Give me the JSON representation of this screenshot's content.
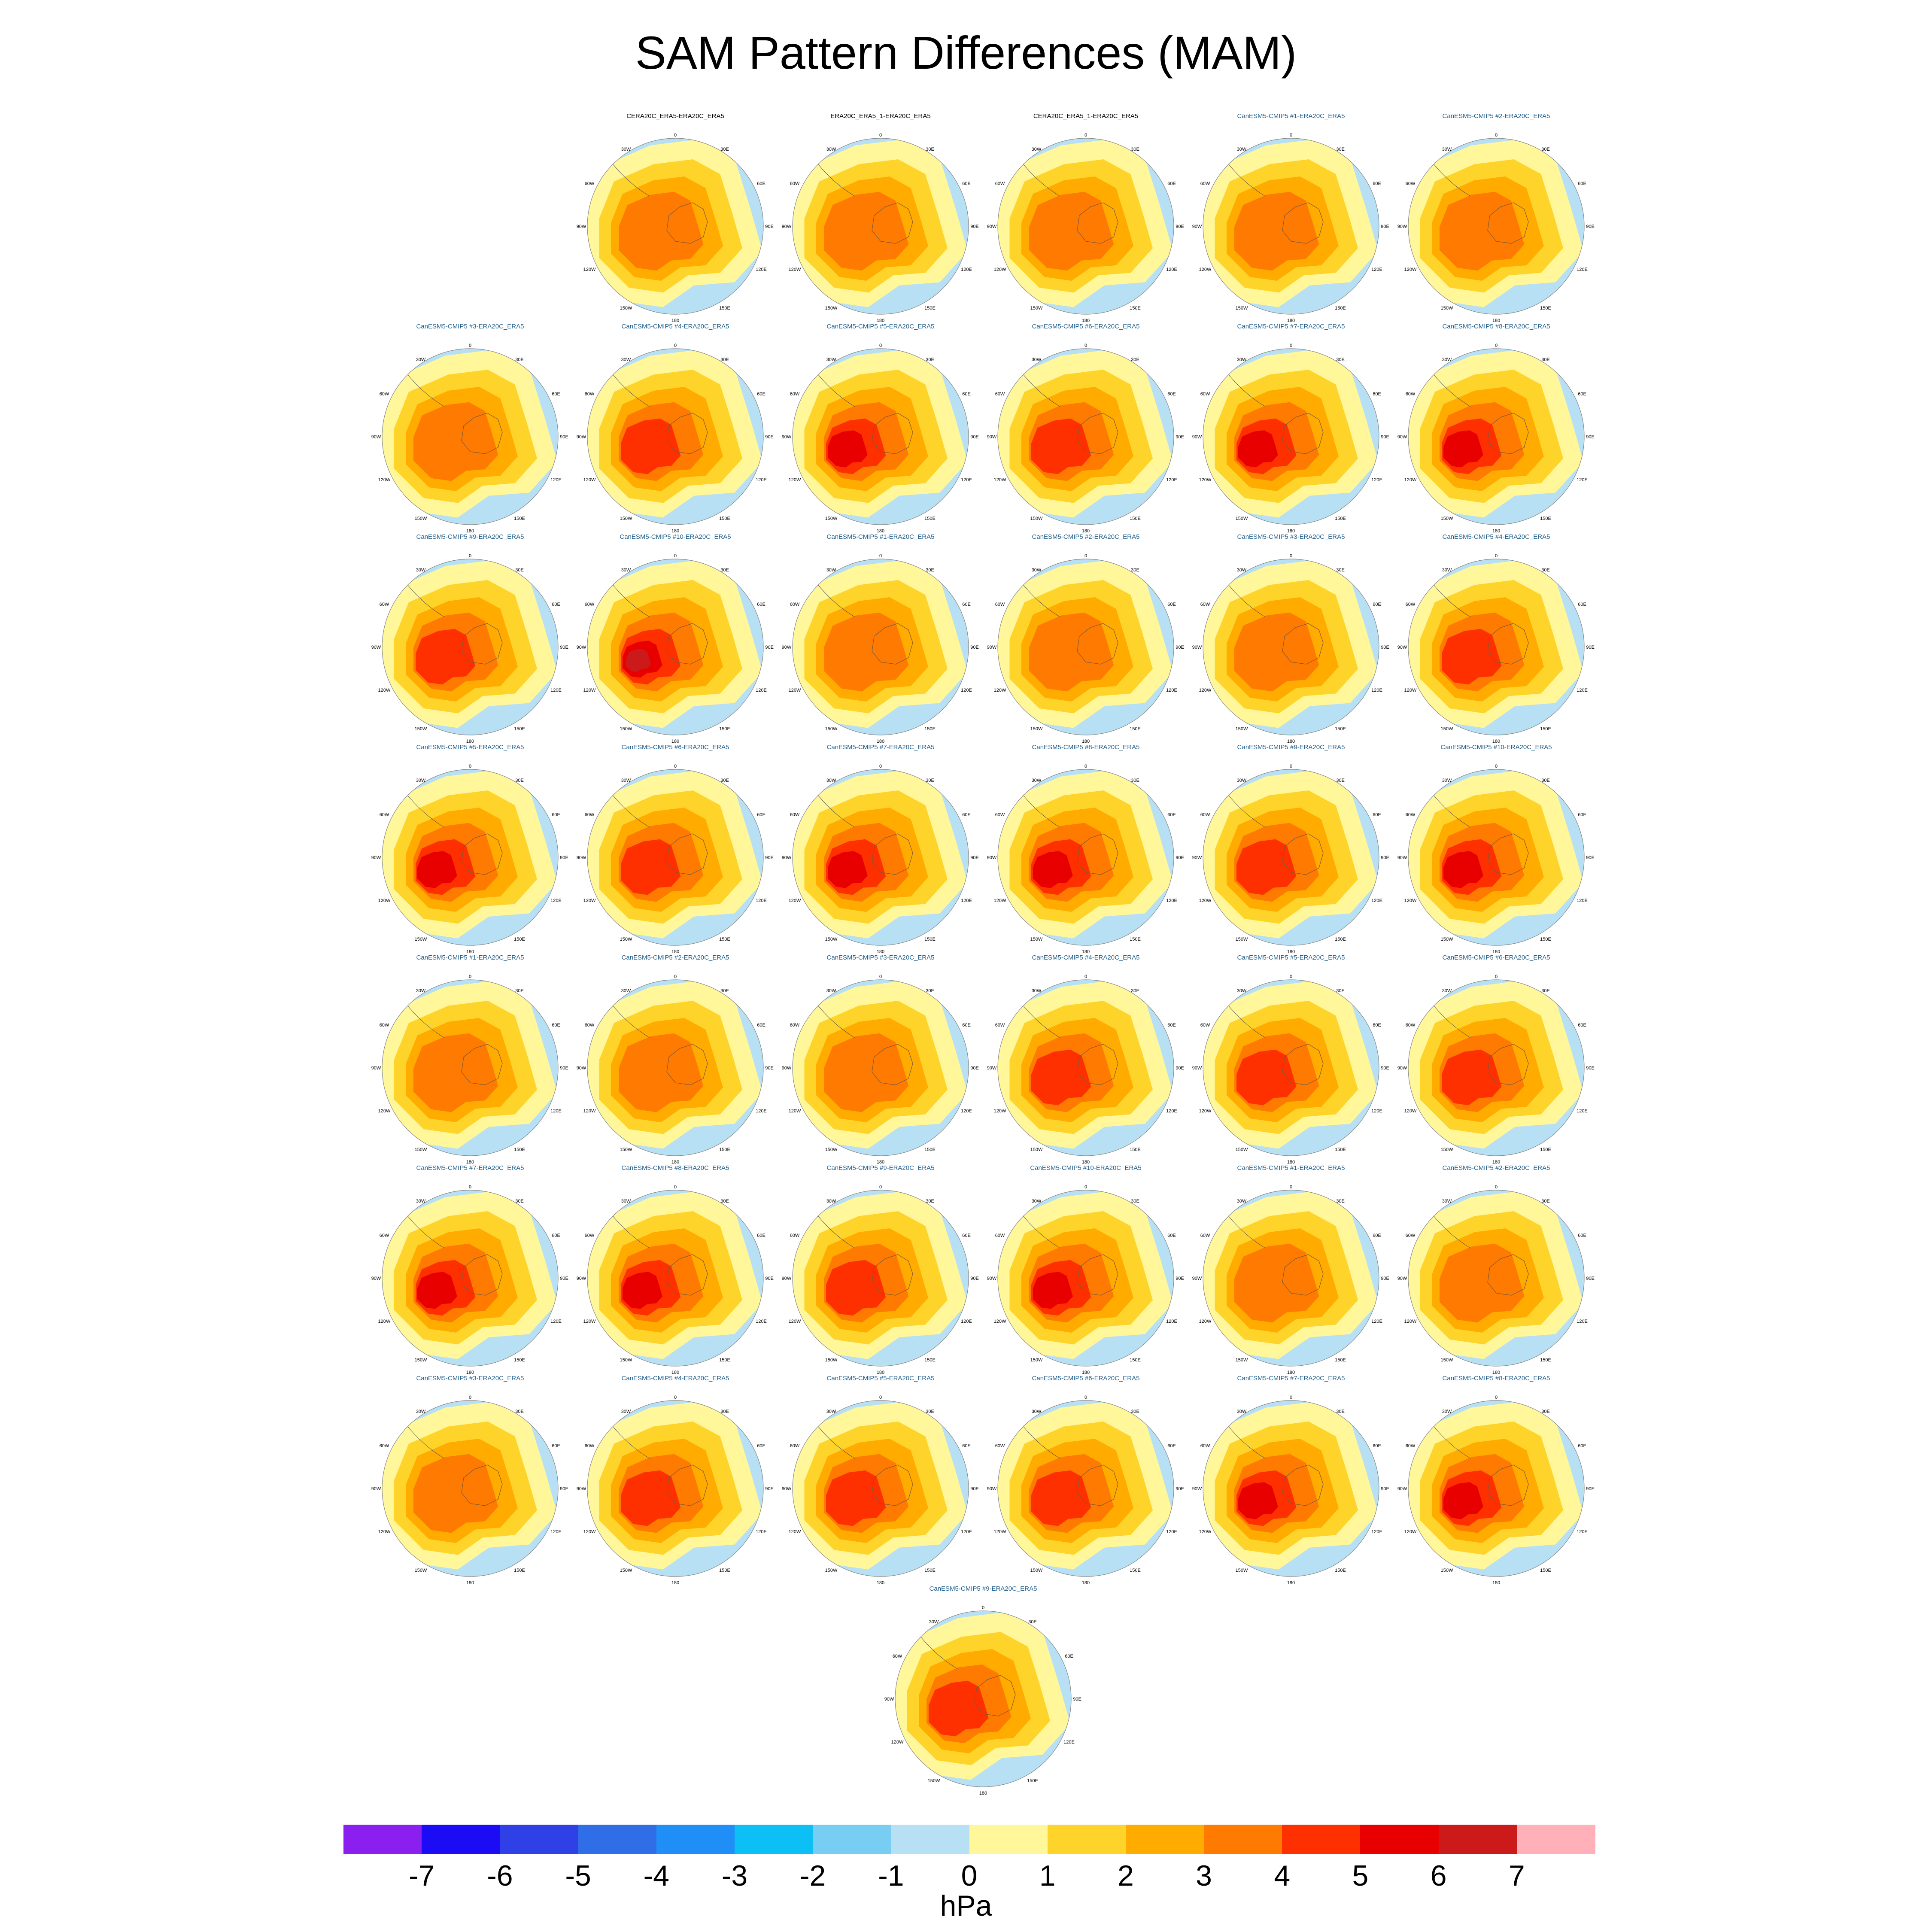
{
  "title": "SAM Pattern Differences (MAM)",
  "units": "hPa",
  "colorbar": {
    "colors": [
      "#8a1ff0",
      "#1c0cf5",
      "#2e40e6",
      "#2f6ee6",
      "#1f8ff7",
      "#0cc0f5",
      "#78cdf3",
      "#b8e0f5",
      "#fff799",
      "#ffd42a",
      "#ffab00",
      "#ff7a00",
      "#ff3000",
      "#e80000",
      "#cc1a1a",
      "#ffb0b8"
    ],
    "levels": [
      "-7",
      "-6",
      "-5",
      "-4",
      "-3",
      "-2",
      "-1",
      "0",
      "1",
      "2",
      "3",
      "4",
      "5",
      "6",
      "7"
    ]
  },
  "map_labels": {
    "top": "0",
    "nw": "30W",
    "ne": "30E",
    "wnw": "60W",
    "ene": "60E",
    "w": "90W",
    "e": "90E",
    "wsw": "120W",
    "ese": "120E",
    "sw": "150W",
    "se": "150E",
    "bottom": "180"
  },
  "panels": [
    {
      "row": 0,
      "col": 1,
      "title": "CERA20C_ERA5-ERA20C_ERA5",
      "title_color": "black",
      "max_level": 3
    },
    {
      "row": 0,
      "col": 2,
      "title": "ERA20C_ERA5_1-ERA20C_ERA5",
      "title_color": "black",
      "max_level": 3
    },
    {
      "row": 0,
      "col": 3,
      "title": "CERA20C_ERA5_1-ERA20C_ERA5",
      "title_color": "black",
      "max_level": 3
    },
    {
      "row": 0,
      "col": 4,
      "title": "CanESM5-CMIP5 #1-ERA20C_ERA5",
      "title_color": "blue",
      "max_level": 3
    },
    {
      "row": 0,
      "col": 5,
      "title": "CanESM5-CMIP5 #2-ERA20C_ERA5",
      "title_color": "blue",
      "max_level": 3
    },
    {
      "row": 1,
      "col": 0,
      "title": "CanESM5-CMIP5 #3-ERA20C_ERA5",
      "title_color": "blue",
      "max_level": 3
    },
    {
      "row": 1,
      "col": 1,
      "title": "CanESM5-CMIP5 #4-ERA20C_ERA5",
      "title_color": "blue",
      "max_level": 4
    },
    {
      "row": 1,
      "col": 2,
      "title": "CanESM5-CMIP5 #5-ERA20C_ERA5",
      "title_color": "blue",
      "max_level": 5
    },
    {
      "row": 1,
      "col": 3,
      "title": "CanESM5-CMIP5 #6-ERA20C_ERA5",
      "title_color": "blue",
      "max_level": 4
    },
    {
      "row": 1,
      "col": 4,
      "title": "CanESM5-CMIP5 #7-ERA20C_ERA5",
      "title_color": "blue",
      "max_level": 5
    },
    {
      "row": 1,
      "col": 5,
      "title": "CanESM5-CMIP5 #8-ERA20C_ERA5",
      "title_color": "blue",
      "max_level": 5
    },
    {
      "row": 2,
      "col": 0,
      "title": "CanESM5-CMIP5 #9-ERA20C_ERA5",
      "title_color": "blue",
      "max_level": 4
    },
    {
      "row": 2,
      "col": 1,
      "title": "CanESM5-CMIP5 #10-ERA20C_ERA5",
      "title_color": "blue",
      "max_level": 6
    },
    {
      "row": 2,
      "col": 2,
      "title": "CanESM5-CMIP5 #1-ERA20C_ERA5",
      "title_color": "blue",
      "max_level": 3
    },
    {
      "row": 2,
      "col": 3,
      "title": "CanESM5-CMIP5 #2-ERA20C_ERA5",
      "title_color": "blue",
      "max_level": 3
    },
    {
      "row": 2,
      "col": 4,
      "title": "CanESM5-CMIP5 #3-ERA20C_ERA5",
      "title_color": "blue",
      "max_level": 3
    },
    {
      "row": 2,
      "col": 5,
      "title": "CanESM5-CMIP5 #4-ERA20C_ERA5",
      "title_color": "blue",
      "max_level": 4
    },
    {
      "row": 3,
      "col": 0,
      "title": "CanESM5-CMIP5 #5-ERA20C_ERA5",
      "title_color": "blue",
      "max_level": 5
    },
    {
      "row": 3,
      "col": 1,
      "title": "CanESM5-CMIP5 #6-ERA20C_ERA5",
      "title_color": "blue",
      "max_level": 4
    },
    {
      "row": 3,
      "col": 2,
      "title": "CanESM5-CMIP5 #7-ERA20C_ERA5",
      "title_color": "blue",
      "max_level": 5
    },
    {
      "row": 3,
      "col": 3,
      "title": "CanESM5-CMIP5 #8-ERA20C_ERA5",
      "title_color": "blue",
      "max_level": 5
    },
    {
      "row": 3,
      "col": 4,
      "title": "CanESM5-CMIP5 #9-ERA20C_ERA5",
      "title_color": "blue",
      "max_level": 4
    },
    {
      "row": 3,
      "col": 5,
      "title": "CanESM5-CMIP5 #10-ERA20C_ERA5",
      "title_color": "blue",
      "max_level": 5
    },
    {
      "row": 4,
      "col": 0,
      "title": "CanESM5-CMIP5 #1-ERA20C_ERA5",
      "title_color": "blue",
      "max_level": 3
    },
    {
      "row": 4,
      "col": 1,
      "title": "CanESM5-CMIP5 #2-ERA20C_ERA5",
      "title_color": "blue",
      "max_level": 3
    },
    {
      "row": 4,
      "col": 2,
      "title": "CanESM5-CMIP5 #3-ERA20C_ERA5",
      "title_color": "blue",
      "max_level": 3
    },
    {
      "row": 4,
      "col": 3,
      "title": "CanESM5-CMIP5 #4-ERA20C_ERA5",
      "title_color": "blue",
      "max_level": 4
    },
    {
      "row": 4,
      "col": 4,
      "title": "CanESM5-CMIP5 #5-ERA20C_ERA5",
      "title_color": "blue",
      "max_level": 4
    },
    {
      "row": 4,
      "col": 5,
      "title": "CanESM5-CMIP5 #6-ERA20C_ERA5",
      "title_color": "blue",
      "max_level": 4
    },
    {
      "row": 5,
      "col": 0,
      "title": "CanESM5-CMIP5 #7-ERA20C_ERA5",
      "title_color": "blue",
      "max_level": 5
    },
    {
      "row": 5,
      "col": 1,
      "title": "CanESM5-CMIP5 #8-ERA20C_ERA5",
      "title_color": "blue",
      "max_level": 5
    },
    {
      "row": 5,
      "col": 2,
      "title": "CanESM5-CMIP5 #9-ERA20C_ERA5",
      "title_color": "blue",
      "max_level": 4
    },
    {
      "row": 5,
      "col": 3,
      "title": "CanESM5-CMIP5 #10-ERA20C_ERA5",
      "title_color": "blue",
      "max_level": 5
    },
    {
      "row": 5,
      "col": 4,
      "title": "CanESM5-CMIP5 #1-ERA20C_ERA5",
      "title_color": "blue",
      "max_level": 3
    },
    {
      "row": 5,
      "col": 5,
      "title": "CanESM5-CMIP5 #2-ERA20C_ERA5",
      "title_color": "blue",
      "max_level": 3
    },
    {
      "row": 6,
      "col": 0,
      "title": "CanESM5-CMIP5 #3-ERA20C_ERA5",
      "title_color": "blue",
      "max_level": 3
    },
    {
      "row": 6,
      "col": 1,
      "title": "CanESM5-CMIP5 #4-ERA20C_ERA5",
      "title_color": "blue",
      "max_level": 4
    },
    {
      "row": 6,
      "col": 2,
      "title": "CanESM5-CMIP5 #5-ERA20C_ERA5",
      "title_color": "blue",
      "max_level": 4
    },
    {
      "row": 6,
      "col": 3,
      "title": "CanESM5-CMIP5 #6-ERA20C_ERA5",
      "title_color": "blue",
      "max_level": 4
    },
    {
      "row": 6,
      "col": 4,
      "title": "CanESM5-CMIP5 #7-ERA20C_ERA5",
      "title_color": "blue",
      "max_level": 5
    },
    {
      "row": 6,
      "col": 5,
      "title": "CanESM5-CMIP5 #8-ERA20C_ERA5",
      "title_color": "blue",
      "max_level": 5
    },
    {
      "row": 7,
      "col": 2.5,
      "title": "CanESM5-CMIP5 #9-ERA20C_ERA5",
      "title_color": "blue",
      "max_level": 4
    }
  ]
}
